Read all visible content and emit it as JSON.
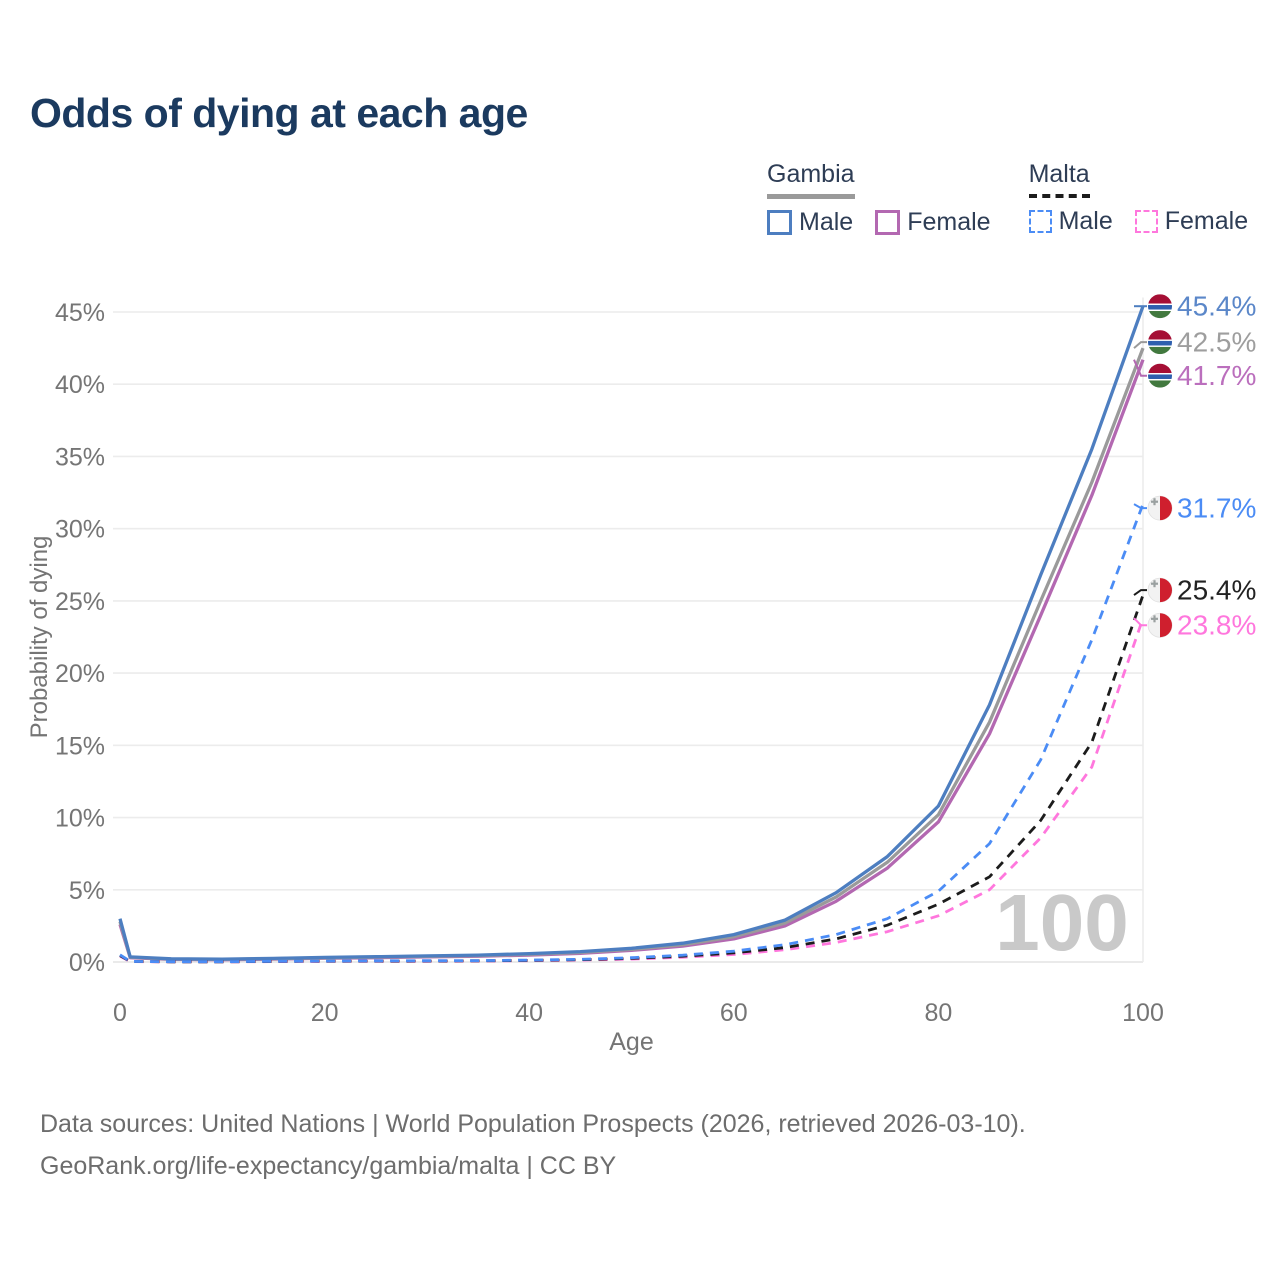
{
  "title": "Odds of dying at each age",
  "legend": {
    "groups": [
      {
        "label": "Gambia",
        "line_style": "solid",
        "line_color": "#9a9a9a",
        "items": [
          {
            "label": "Male",
            "color": "#4d7ec0"
          },
          {
            "label": "Female",
            "color": "#b368b1"
          }
        ]
      },
      {
        "label": "Malta",
        "line_style": "dashed",
        "line_color": "#1c1c1c",
        "items": [
          {
            "label": "Male",
            "color": "#4b8cf5"
          },
          {
            "label": "Female",
            "color": "#ff77dd"
          }
        ]
      }
    ]
  },
  "axes": {
    "y_label": "Probability of dying",
    "x_label": "Age",
    "y_tick_labels": [
      "45%",
      "40%",
      "35%",
      "30%",
      "25%",
      "20%",
      "15%",
      "10%",
      "5%",
      "0%"
    ],
    "x_tick_labels": [
      "0",
      "20",
      "40",
      "60",
      "80",
      "100"
    ]
  },
  "watermark": "100",
  "chart_data": {
    "type": "line",
    "title": "Odds of dying at each age",
    "xlabel": "Age",
    "ylabel": "Probability of dying",
    "xlim": [
      0,
      100
    ],
    "ylim": [
      0,
      46
    ],
    "x_ticks": [
      0,
      20,
      40,
      60,
      80,
      100
    ],
    "y_ticks_pct": [
      45,
      40,
      35,
      30,
      25,
      20,
      15,
      10,
      5,
      0
    ],
    "grid": "horizontal",
    "legend_position": "top-right",
    "hover_age": "100",
    "ages": [
      0,
      1,
      5,
      10,
      15,
      20,
      25,
      30,
      35,
      40,
      45,
      50,
      55,
      60,
      65,
      70,
      75,
      80,
      85,
      90,
      95,
      100
    ],
    "series": [
      {
        "name": "Gambia Female",
        "country": "Gambia",
        "sex": "Female",
        "color": "#b368b1",
        "label_color": "#bb6fbd",
        "dash": false,
        "end_label": "41.7%",
        "flag": "gambia",
        "values": [
          2.6,
          0.3,
          0.18,
          0.16,
          0.2,
          0.26,
          0.3,
          0.35,
          0.4,
          0.48,
          0.6,
          0.8,
          1.1,
          1.6,
          2.5,
          4.2,
          6.5,
          9.7,
          15.8,
          24.0,
          32.3,
          41.7
        ]
      },
      {
        "name": "Gambia Total",
        "country": "Gambia",
        "sex": "Both",
        "color": "#9a9a9a",
        "label_color": "#9e9e9e",
        "dash": false,
        "end_label": "42.5%",
        "flag": "gambia",
        "values": [
          2.8,
          0.33,
          0.2,
          0.18,
          0.23,
          0.29,
          0.34,
          0.39,
          0.44,
          0.53,
          0.66,
          0.87,
          1.2,
          1.75,
          2.7,
          4.5,
          6.9,
          10.2,
          16.6,
          25.0,
          33.2,
          42.5
        ]
      },
      {
        "name": "Gambia Male",
        "country": "Gambia",
        "sex": "Male",
        "color": "#4d7ec0",
        "label_color": "#5b87c9",
        "dash": false,
        "end_label": "45.4%",
        "flag": "gambia",
        "values": [
          3.0,
          0.35,
          0.22,
          0.2,
          0.25,
          0.32,
          0.37,
          0.42,
          0.48,
          0.58,
          0.72,
          0.95,
          1.3,
          1.9,
          2.9,
          4.8,
          7.3,
          10.8,
          17.8,
          26.8,
          35.5,
          45.4
        ]
      },
      {
        "name": "Malta Female",
        "country": "Malta",
        "sex": "Female",
        "color": "#ff77dd",
        "label_color": "#ff77dd",
        "dash": true,
        "end_label": "23.8%",
        "flag": "malta",
        "values": [
          0.4,
          0.03,
          0.01,
          0.01,
          0.03,
          0.04,
          0.04,
          0.05,
          0.06,
          0.09,
          0.13,
          0.2,
          0.33,
          0.52,
          0.85,
          1.35,
          2.1,
          3.2,
          5.0,
          8.6,
          13.5,
          23.8
        ]
      },
      {
        "name": "Malta Total",
        "country": "Malta",
        "sex": "Both",
        "color": "#1c1c1c",
        "label_color": "#222222",
        "dash": true,
        "end_label": "25.4%",
        "flag": "malta",
        "values": [
          0.45,
          0.04,
          0.015,
          0.015,
          0.04,
          0.055,
          0.06,
          0.07,
          0.08,
          0.11,
          0.16,
          0.25,
          0.4,
          0.63,
          1.0,
          1.6,
          2.55,
          4.0,
          5.9,
          9.8,
          15.2,
          25.4
        ]
      },
      {
        "name": "Malta Male",
        "country": "Malta",
        "sex": "Male",
        "color": "#4b8cf5",
        "label_color": "#4b8cf5",
        "dash": true,
        "end_label": "31.7%",
        "flag": "malta",
        "values": [
          0.5,
          0.045,
          0.02,
          0.02,
          0.05,
          0.07,
          0.08,
          0.09,
          0.1,
          0.13,
          0.19,
          0.3,
          0.47,
          0.75,
          1.2,
          1.9,
          3.0,
          4.9,
          8.2,
          14.0,
          22.3,
          31.7
        ]
      }
    ]
  },
  "flag_colors": {
    "gambia": {
      "red": "#a50f35",
      "blue": "#2e5fae",
      "green": "#42793f",
      "white": "#ffffff"
    },
    "malta": {
      "white": "#f2f2f2",
      "red": "#cf1f2e",
      "cross": "#9aa0a0"
    }
  },
  "footer": {
    "line1": "Data sources: United Nations | World Population Prospects (2026, retrieved 2026-03-10).",
    "line2": "GeoRank.org/life-expectancy/gambia/malta | CC BY"
  }
}
